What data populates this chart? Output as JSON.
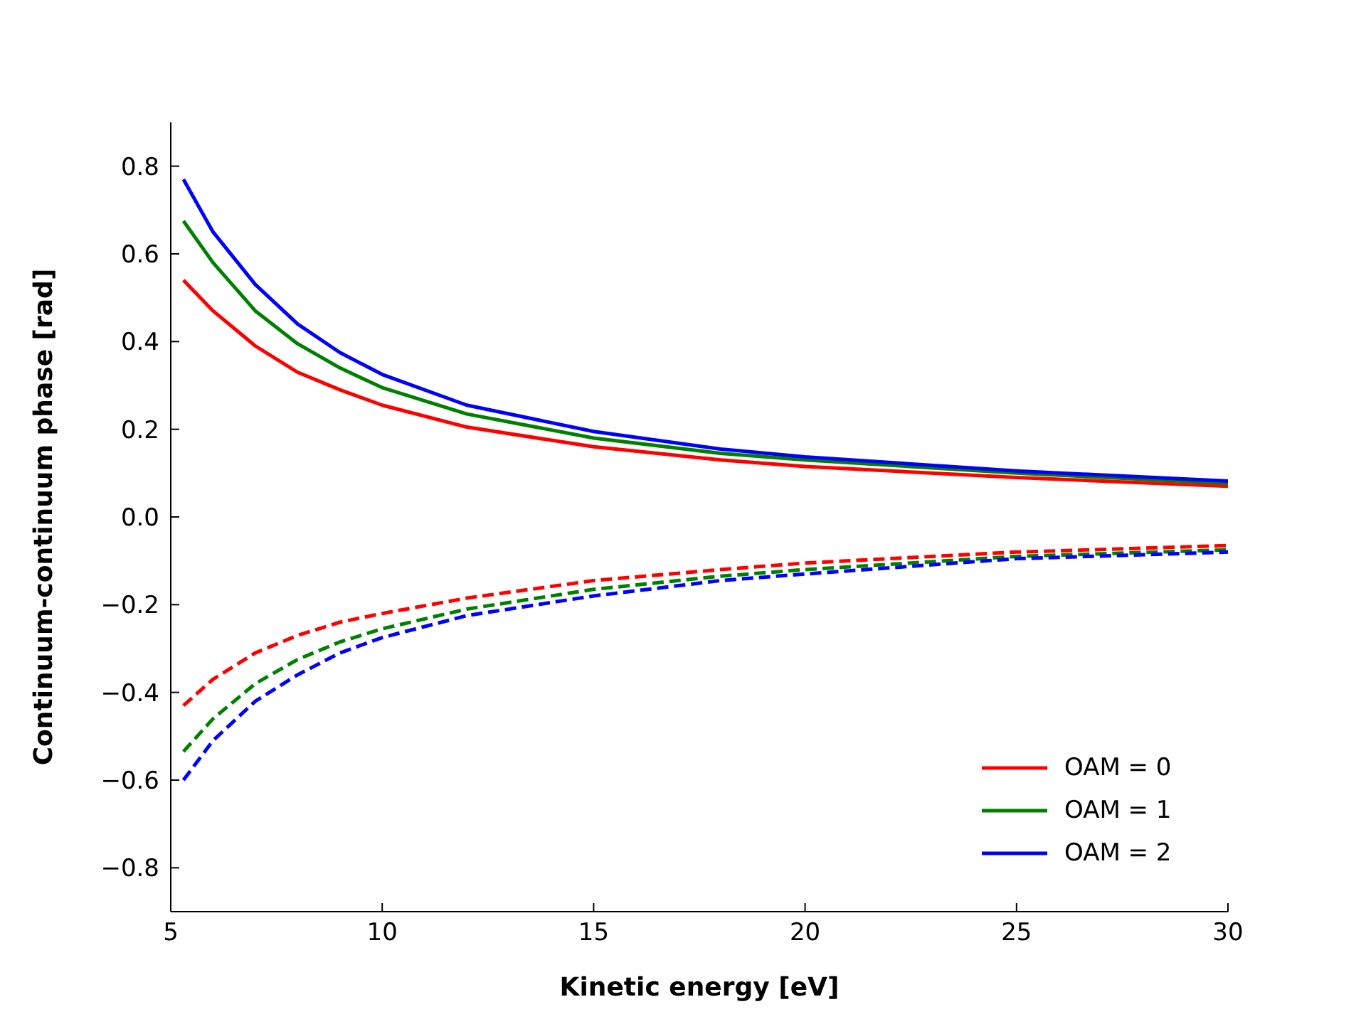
{
  "chart_data": {
    "type": "line",
    "xlabel": "Kinetic energy [eV]",
    "ylabel": "Continuum-continuum phase [rad]",
    "x": [
      5.3,
      6,
      7,
      8,
      9,
      10,
      12,
      15,
      18,
      20,
      25,
      30
    ],
    "series": [
      {
        "name": "OAM = 0",
        "color": "#ff0000",
        "line_style": "solid",
        "values": [
          0.54,
          0.47,
          0.39,
          0.33,
          0.29,
          0.255,
          0.205,
          0.16,
          0.13,
          0.115,
          0.09,
          0.07
        ]
      },
      {
        "name": "OAM = 1",
        "color": "#008000",
        "line_style": "solid",
        "values": [
          0.675,
          0.58,
          0.47,
          0.395,
          0.34,
          0.295,
          0.235,
          0.18,
          0.145,
          0.13,
          0.1,
          0.077
        ]
      },
      {
        "name": "OAM = 2",
        "color": "#0000ff",
        "line_style": "solid",
        "values": [
          0.77,
          0.65,
          0.53,
          0.44,
          0.375,
          0.325,
          0.255,
          0.195,
          0.155,
          0.137,
          0.105,
          0.082
        ]
      },
      {
        "color": "#ff0000",
        "line_style": "dashed",
        "values": [
          -0.43,
          -0.37,
          -0.31,
          -0.27,
          -0.24,
          -0.22,
          -0.185,
          -0.145,
          -0.12,
          -0.105,
          -0.08,
          -0.065
        ]
      },
      {
        "color": "#008000",
        "line_style": "dashed",
        "values": [
          -0.535,
          -0.46,
          -0.38,
          -0.325,
          -0.285,
          -0.255,
          -0.21,
          -0.165,
          -0.135,
          -0.12,
          -0.09,
          -0.075
        ]
      },
      {
        "color": "#0000ff",
        "line_style": "dashed",
        "values": [
          -0.6,
          -0.51,
          -0.42,
          -0.36,
          -0.31,
          -0.275,
          -0.225,
          -0.18,
          -0.145,
          -0.13,
          -0.095,
          -0.08
        ]
      }
    ],
    "xlim": [
      5,
      30
    ],
    "xticks": [
      5,
      10,
      15,
      20,
      25,
      30
    ],
    "ylim": [
      -0.9,
      0.9
    ],
    "yticks": [
      {
        "value": -0.8,
        "label": "−0.8"
      },
      {
        "value": -0.6,
        "label": "−0.6"
      },
      {
        "value": -0.4,
        "label": "−0.4"
      },
      {
        "value": -0.2,
        "label": "−0.2"
      },
      {
        "value": 0,
        "label": "0.0"
      },
      {
        "value": 0.2,
        "label": "0.2"
      },
      {
        "value": 0.4,
        "label": "0.4"
      },
      {
        "value": 0.6,
        "label": "0.6"
      },
      {
        "value": 0.8,
        "label": "0.8"
      }
    ],
    "grid": false,
    "legend": "bottom right",
    "marker": "none"
  }
}
